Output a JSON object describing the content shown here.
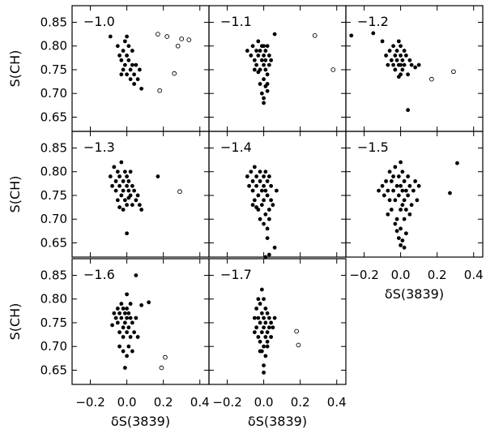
{
  "chart_data": {
    "type": "scatter",
    "layout": "small-multiples",
    "xlabel": "δS(3839)",
    "ylabel": "S(CH)",
    "xlim": [
      -0.3,
      0.45
    ],
    "ylim": [
      0.62,
      0.885
    ],
    "xticks": [
      -0.2,
      0.0,
      0.2,
      0.4
    ],
    "xtick_labels": [
      "−0.2",
      "0.0",
      "0.2",
      "0.4"
    ],
    "yticks": [
      0.65,
      0.7,
      0.75,
      0.8,
      0.85
    ],
    "ytick_labels": [
      "0.65",
      "0.70",
      "0.75",
      "0.80",
      "0.85"
    ],
    "grid": false,
    "marker_styles": {
      "filled": "filled circle",
      "open": "open circle"
    },
    "panels": [
      {
        "label": "−1.0",
        "filled": [
          [
            -0.09,
            0.82
          ],
          [
            -0.05,
            0.8
          ],
          [
            -0.04,
            0.78
          ],
          [
            -0.03,
            0.77
          ],
          [
            -0.02,
            0.79
          ],
          [
            -0.01,
            0.81
          ],
          [
            -0.01,
            0.76
          ],
          [
            0.0,
            0.78
          ],
          [
            0.0,
            0.74
          ],
          [
            0.01,
            0.8
          ],
          [
            0.01,
            0.77
          ],
          [
            0.02,
            0.75
          ],
          [
            0.02,
            0.73
          ],
          [
            0.03,
            0.76
          ],
          [
            0.03,
            0.79
          ],
          [
            0.04,
            0.74
          ],
          [
            0.05,
            0.76
          ],
          [
            0.06,
            0.73
          ],
          [
            0.07,
            0.75
          ],
          [
            0.04,
            0.72
          ],
          [
            0.08,
            0.71
          ],
          [
            -0.02,
            0.75
          ],
          [
            0.0,
            0.82
          ],
          [
            -0.03,
            0.74
          ]
        ],
        "open": [
          [
            0.17,
            0.825
          ],
          [
            0.22,
            0.82
          ],
          [
            0.28,
            0.8
          ],
          [
            0.3,
            0.815
          ],
          [
            0.34,
            0.813
          ],
          [
            0.26,
            0.742
          ],
          [
            0.18,
            0.706
          ]
        ]
      },
      {
        "label": "−1.1",
        "filled": [
          [
            -0.09,
            0.79
          ],
          [
            -0.07,
            0.78
          ],
          [
            -0.06,
            0.8
          ],
          [
            -0.05,
            0.77
          ],
          [
            -0.04,
            0.79
          ],
          [
            -0.04,
            0.76
          ],
          [
            -0.03,
            0.78
          ],
          [
            -0.03,
            0.81
          ],
          [
            -0.02,
            0.75
          ],
          [
            -0.02,
            0.79
          ],
          [
            -0.01,
            0.77
          ],
          [
            -0.01,
            0.8
          ],
          [
            0.0,
            0.78
          ],
          [
            0.0,
            0.76
          ],
          [
            0.0,
            0.73
          ],
          [
            0.01,
            0.79
          ],
          [
            0.01,
            0.77
          ],
          [
            0.01,
            0.75
          ],
          [
            0.02,
            0.8
          ],
          [
            0.02,
            0.74
          ],
          [
            0.02,
            0.72
          ],
          [
            0.03,
            0.78
          ],
          [
            0.03,
            0.76
          ],
          [
            -0.02,
            0.72
          ],
          [
            -0.01,
            0.7
          ],
          [
            0.0,
            0.68
          ],
          [
            0.01,
            0.715
          ],
          [
            0.06,
            0.825
          ],
          [
            0.04,
            0.77
          ],
          [
            -0.05,
            0.75
          ],
          [
            0.0,
            0.8
          ],
          [
            -0.03,
            0.745
          ],
          [
            0.02,
            0.705
          ],
          [
            0.0,
            0.69
          ]
        ],
        "open": [
          [
            0.28,
            0.822
          ],
          [
            0.38,
            0.75
          ]
        ]
      },
      {
        "label": "−1.2",
        "filled": [
          [
            -0.27,
            0.822
          ],
          [
            -0.15,
            0.827
          ],
          [
            -0.1,
            0.81
          ],
          [
            -0.08,
            0.78
          ],
          [
            -0.06,
            0.79
          ],
          [
            -0.05,
            0.77
          ],
          [
            -0.04,
            0.8
          ],
          [
            -0.04,
            0.76
          ],
          [
            -0.03,
            0.78
          ],
          [
            -0.03,
            0.75
          ],
          [
            -0.02,
            0.79
          ],
          [
            -0.02,
            0.77
          ],
          [
            -0.01,
            0.81
          ],
          [
            -0.01,
            0.76
          ],
          [
            0.0,
            0.78
          ],
          [
            0.0,
            0.74
          ],
          [
            0.0,
            0.8
          ],
          [
            0.01,
            0.77
          ],
          [
            0.01,
            0.75
          ],
          [
            0.02,
            0.79
          ],
          [
            0.02,
            0.76
          ],
          [
            0.03,
            0.78
          ],
          [
            0.04,
            0.74
          ],
          [
            0.05,
            0.77
          ],
          [
            0.06,
            0.76
          ],
          [
            0.08,
            0.755
          ],
          [
            0.1,
            0.76
          ],
          [
            0.04,
            0.665
          ],
          [
            -0.07,
            0.76
          ],
          [
            0.0,
            0.76
          ],
          [
            -0.01,
            0.735
          ]
        ],
        "open": [
          [
            0.17,
            0.73
          ],
          [
            0.29,
            0.746
          ]
        ]
      },
      {
        "label": "−1.3",
        "filled": [
          [
            -0.09,
            0.79
          ],
          [
            -0.08,
            0.77
          ],
          [
            -0.07,
            0.81
          ],
          [
            -0.06,
            0.78
          ],
          [
            -0.06,
            0.76
          ],
          [
            -0.05,
            0.8
          ],
          [
            -0.05,
            0.74
          ],
          [
            -0.04,
            0.79
          ],
          [
            -0.04,
            0.77
          ],
          [
            -0.03,
            0.82
          ],
          [
            -0.03,
            0.75
          ],
          [
            -0.02,
            0.78
          ],
          [
            -0.02,
            0.76
          ],
          [
            -0.01,
            0.8
          ],
          [
            -0.01,
            0.74
          ],
          [
            0.0,
            0.79
          ],
          [
            0.0,
            0.77
          ],
          [
            0.0,
            0.73
          ],
          [
            0.01,
            0.78
          ],
          [
            0.01,
            0.76
          ],
          [
            0.02,
            0.8
          ],
          [
            0.02,
            0.75
          ],
          [
            0.03,
            0.77
          ],
          [
            0.03,
            0.73
          ],
          [
            0.04,
            0.76
          ],
          [
            0.05,
            0.74
          ],
          [
            0.06,
            0.75
          ],
          [
            0.07,
            0.73
          ],
          [
            0.08,
            0.72
          ],
          [
            0.0,
            0.67
          ],
          [
            0.17,
            0.79
          ],
          [
            -0.02,
            0.72
          ],
          [
            -0.04,
            0.725
          ],
          [
            0.01,
            0.745
          ]
        ],
        "open": [
          [
            0.29,
            0.758
          ]
        ]
      },
      {
        "label": "−1.4",
        "filled": [
          [
            -0.09,
            0.79
          ],
          [
            -0.08,
            0.77
          ],
          [
            -0.07,
            0.8
          ],
          [
            -0.06,
            0.76
          ],
          [
            -0.06,
            0.78
          ],
          [
            -0.05,
            0.74
          ],
          [
            -0.05,
            0.81
          ],
          [
            -0.04,
            0.77
          ],
          [
            -0.04,
            0.79
          ],
          [
            -0.03,
            0.75
          ],
          [
            -0.03,
            0.72
          ],
          [
            -0.02,
            0.78
          ],
          [
            -0.02,
            0.8
          ],
          [
            -0.01,
            0.76
          ],
          [
            -0.01,
            0.73
          ],
          [
            0.0,
            0.79
          ],
          [
            0.0,
            0.77
          ],
          [
            0.0,
            0.74
          ],
          [
            0.01,
            0.8
          ],
          [
            0.01,
            0.76
          ],
          [
            0.02,
            0.78
          ],
          [
            0.02,
            0.75
          ],
          [
            0.03,
            0.72
          ],
          [
            0.03,
            0.79
          ],
          [
            0.04,
            0.77
          ],
          [
            0.04,
            0.74
          ],
          [
            -0.06,
            0.73
          ],
          [
            -0.02,
            0.7
          ],
          [
            0.0,
            0.69
          ],
          [
            0.01,
            0.71
          ],
          [
            0.02,
            0.68
          ],
          [
            0.03,
            0.7
          ],
          [
            0.05,
            0.73
          ],
          [
            0.07,
            0.76
          ],
          [
            0.06,
            0.64
          ],
          [
            0.03,
            0.625
          ],
          [
            0.01,
            0.62
          ],
          [
            -0.04,
            0.725
          ],
          [
            0.02,
            0.66
          ]
        ],
        "open": []
      },
      {
        "label": "−1.5",
        "filled": [
          [
            -0.12,
            0.76
          ],
          [
            -0.1,
            0.77
          ],
          [
            -0.09,
            0.75
          ],
          [
            -0.08,
            0.78
          ],
          [
            -0.07,
            0.76
          ],
          [
            -0.06,
            0.8
          ],
          [
            -0.06,
            0.74
          ],
          [
            -0.05,
            0.78
          ],
          [
            -0.05,
            0.72
          ],
          [
            -0.04,
            0.79
          ],
          [
            -0.04,
            0.76
          ],
          [
            -0.03,
            0.81
          ],
          [
            -0.03,
            0.74
          ],
          [
            -0.02,
            0.77
          ],
          [
            -0.02,
            0.7
          ],
          [
            -0.01,
            0.79
          ],
          [
            -0.01,
            0.75
          ],
          [
            0.0,
            0.82
          ],
          [
            0.0,
            0.77
          ],
          [
            0.0,
            0.72
          ],
          [
            0.0,
            0.68
          ],
          [
            0.01,
            0.8
          ],
          [
            0.01,
            0.76
          ],
          [
            0.01,
            0.73
          ],
          [
            0.02,
            0.78
          ],
          [
            0.02,
            0.74
          ],
          [
            0.02,
            0.7
          ],
          [
            0.03,
            0.76
          ],
          [
            0.03,
            0.72
          ],
          [
            0.04,
            0.79
          ],
          [
            0.04,
            0.75
          ],
          [
            0.05,
            0.77
          ],
          [
            0.06,
            0.73
          ],
          [
            0.07,
            0.76
          ],
          [
            0.08,
            0.78
          ],
          [
            0.09,
            0.74
          ],
          [
            0.1,
            0.77
          ],
          [
            -0.03,
            0.69
          ],
          [
            -0.01,
            0.66
          ],
          [
            0.0,
            0.645
          ],
          [
            0.01,
            0.655
          ],
          [
            0.02,
            0.64
          ],
          [
            0.03,
            0.67
          ],
          [
            -0.02,
            0.675
          ],
          [
            0.31,
            0.818
          ],
          [
            0.27,
            0.755
          ],
          [
            -0.07,
            0.71
          ],
          [
            0.05,
            0.71
          ]
        ],
        "open": []
      },
      {
        "label": "−1.6",
        "filled": [
          [
            -0.08,
            0.745
          ],
          [
            -0.07,
            0.77
          ],
          [
            -0.06,
            0.76
          ],
          [
            -0.05,
            0.78
          ],
          [
            -0.05,
            0.75
          ],
          [
            -0.04,
            0.77
          ],
          [
            -0.04,
            0.73
          ],
          [
            -0.03,
            0.79
          ],
          [
            -0.03,
            0.76
          ],
          [
            -0.02,
            0.78
          ],
          [
            -0.02,
            0.74
          ],
          [
            -0.02,
            0.72
          ],
          [
            -0.01,
            0.77
          ],
          [
            -0.01,
            0.75
          ],
          [
            0.0,
            0.78
          ],
          [
            0.0,
            0.76
          ],
          [
            0.0,
            0.73
          ],
          [
            0.01,
            0.77
          ],
          [
            0.01,
            0.74
          ],
          [
            0.02,
            0.76
          ],
          [
            0.02,
            0.72
          ],
          [
            0.03,
            0.75
          ],
          [
            0.04,
            0.73
          ],
          [
            0.05,
            0.76
          ],
          [
            -0.04,
            0.7
          ],
          [
            -0.02,
            0.69
          ],
          [
            0.0,
            0.68
          ],
          [
            0.01,
            0.7
          ],
          [
            -0.01,
            0.655
          ],
          [
            0.03,
            0.69
          ],
          [
            0.02,
            0.79
          ],
          [
            0.0,
            0.81
          ],
          [
            0.05,
            0.85
          ],
          [
            0.12,
            0.793
          ],
          [
            0.08,
            0.787
          ],
          [
            0.06,
            0.72
          ]
        ],
        "open": [
          [
            0.21,
            0.677
          ],
          [
            0.19,
            0.655
          ]
        ]
      },
      {
        "label": "−1.7",
        "filled": [
          [
            -0.05,
            0.76
          ],
          [
            -0.04,
            0.78
          ],
          [
            -0.04,
            0.74
          ],
          [
            -0.03,
            0.8
          ],
          [
            -0.03,
            0.76
          ],
          [
            -0.03,
            0.72
          ],
          [
            -0.02,
            0.79
          ],
          [
            -0.02,
            0.75
          ],
          [
            -0.02,
            0.71
          ],
          [
            -0.01,
            0.82
          ],
          [
            -0.01,
            0.77
          ],
          [
            -0.01,
            0.73
          ],
          [
            -0.01,
            0.69
          ],
          [
            0.0,
            0.8
          ],
          [
            0.0,
            0.76
          ],
          [
            0.0,
            0.74
          ],
          [
            0.0,
            0.7
          ],
          [
            0.0,
            0.66
          ],
          [
            0.01,
            0.78
          ],
          [
            0.01,
            0.75
          ],
          [
            0.01,
            0.72
          ],
          [
            0.01,
            0.68
          ],
          [
            0.02,
            0.77
          ],
          [
            0.02,
            0.73
          ],
          [
            0.02,
            0.71
          ],
          [
            0.03,
            0.76
          ],
          [
            0.03,
            0.74
          ],
          [
            0.04,
            0.75
          ],
          [
            0.04,
            0.72
          ],
          [
            0.05,
            0.74
          ],
          [
            0.0,
            0.645
          ],
          [
            -0.02,
            0.69
          ],
          [
            0.02,
            0.7
          ],
          [
            0.06,
            0.76
          ],
          [
            -0.05,
            0.73
          ]
        ],
        "open": [
          [
            0.18,
            0.732
          ],
          [
            0.19,
            0.703
          ]
        ]
      }
    ]
  }
}
